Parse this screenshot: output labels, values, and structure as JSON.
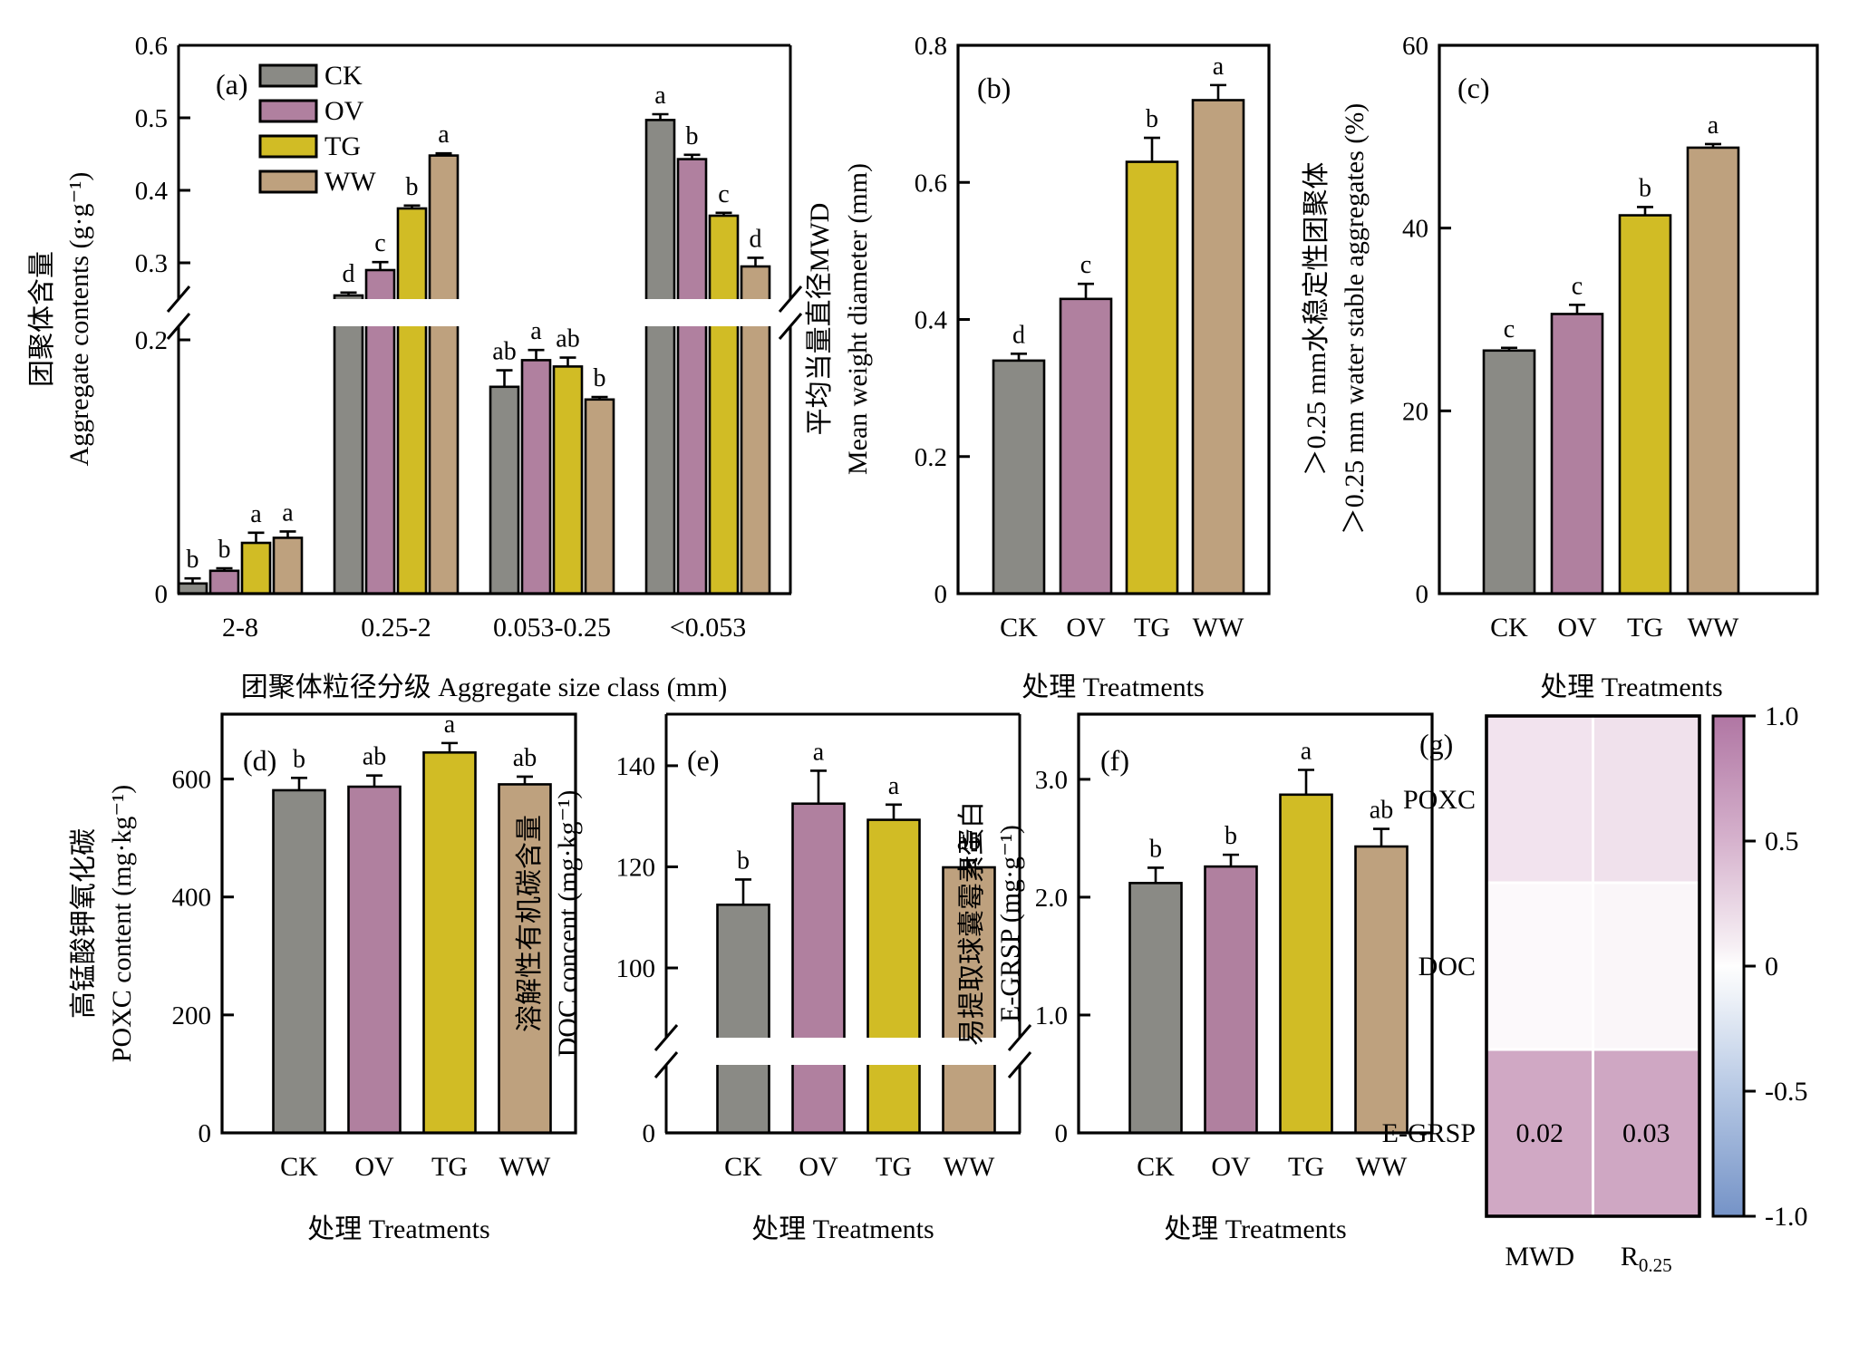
{
  "figure": {
    "background": "#ffffff",
    "treatments": [
      "CK",
      "OV",
      "TG",
      "WW"
    ],
    "treatment_colors": {
      "CK": "#8a8a85",
      "OV": "#b0809f",
      "TG": "#d1bc25",
      "WW": "#bea17e"
    },
    "bar_outline_color": "#000000",
    "legend_labels": [
      "CK",
      "OV",
      "TG",
      "WW"
    ]
  },
  "chart_data": [
    {
      "id": "a",
      "type": "bar",
      "panel_tag": "(a)",
      "xlabel": "团聚体粒径分级 Aggregate size class (mm)",
      "ylabel_zh": "团聚体含量",
      "ylabel_en": "Aggregate contents (g·g⁻¹)",
      "categories": [
        "2-8",
        "0.25-2",
        "0.053-0.25",
        "<0.053"
      ],
      "series": [
        {
          "name": "CK",
          "values": [
            0.008,
            0.255,
            0.163,
            0.497
          ],
          "errors": [
            0.004,
            0.004,
            0.013,
            0.008
          ],
          "letters": [
            "b",
            "d",
            "ab",
            "a"
          ]
        },
        {
          "name": "OV",
          "values": [
            0.018,
            0.29,
            0.184,
            0.443
          ],
          "errors": [
            0.002,
            0.011,
            0.008,
            0.006
          ],
          "letters": [
            "b",
            "c",
            "a",
            "b"
          ]
        },
        {
          "name": "TG",
          "values": [
            0.04,
            0.375,
            0.179,
            0.365
          ],
          "errors": [
            0.008,
            0.004,
            0.007,
            0.004
          ],
          "letters": [
            "a",
            "b",
            "ab",
            "c"
          ]
        },
        {
          "name": "WW",
          "values": [
            0.044,
            0.448,
            0.153,
            0.295
          ],
          "errors": [
            0.005,
            0.003,
            0.002,
            0.012
          ],
          "letters": [
            "a",
            "a",
            "b",
            "d"
          ]
        }
      ],
      "y_axis": {
        "broken": true,
        "segments": [
          {
            "ticks": [
              [
                "0.3",
                0.3
              ],
              [
                "0.4",
                0.4
              ],
              [
                "0.5",
                0.5
              ],
              [
                "0.6",
                0.6
              ]
            ]
          },
          {
            "ticks": [
              [
                "0",
                0
              ],
              [
                "0.2",
                0.2
              ]
            ]
          }
        ]
      },
      "legend": true
    },
    {
      "id": "b",
      "type": "bar",
      "panel_tag": "(b)",
      "xlabel": "处理 Treatments",
      "ylabel_zh": "平均当量直径MWD",
      "ylabel_en": "Mean weight diameter (mm)",
      "categories": [
        "CK",
        "OV",
        "TG",
        "WW"
      ],
      "values": [
        0.34,
        0.43,
        0.63,
        0.72
      ],
      "errors": [
        0.01,
        0.022,
        0.035,
        0.022
      ],
      "letters": [
        "d",
        "c",
        "b",
        "a"
      ],
      "y_axis": {
        "broken": false,
        "segments": [
          {
            "ticks": [
              [
                "0",
                0
              ],
              [
                "0.2",
                0.2
              ],
              [
                "0.4",
                0.4
              ],
              [
                "0.6",
                0.6
              ],
              [
                "0.8",
                0.8
              ]
            ]
          }
        ]
      }
    },
    {
      "id": "c",
      "type": "bar",
      "panel_tag": "(c)",
      "xlabel": "处理 Treatments",
      "ylabel_zh": "＞0.25 mm水稳定性团聚体",
      "ylabel_en": "＞0.25 mm water stable aggregates (%)",
      "categories": [
        "CK",
        "OV",
        "TG",
        "WW"
      ],
      "values": [
        26.6,
        30.6,
        41.4,
        48.8
      ],
      "errors": [
        0.3,
        1.0,
        0.9,
        0.4
      ],
      "letters": [
        "c",
        "c",
        "b",
        "a"
      ],
      "y_axis": {
        "broken": false,
        "segments": [
          {
            "ticks": [
              [
                "0",
                0
              ],
              [
                "20",
                20
              ],
              [
                "40",
                40
              ],
              [
                "60",
                60
              ]
            ]
          }
        ]
      }
    },
    {
      "id": "d",
      "type": "bar",
      "panel_tag": "(d)",
      "xlabel": "处理 Treatments",
      "ylabel_zh": "高锰酸钾氧化碳",
      "ylabel_en": "POXC content (mg·kg⁻¹)",
      "categories": [
        "CK",
        "OV",
        "TG",
        "WW"
      ],
      "values": [
        581,
        587,
        645,
        591
      ],
      "errors": [
        21,
        19,
        16,
        13
      ],
      "letters": [
        "b",
        "ab",
        "a",
        "ab"
      ],
      "y_axis": {
        "broken": false,
        "segments": [
          {
            "ticks": [
              [
                "0",
                0
              ],
              [
                "200",
                200
              ],
              [
                "400",
                400
              ],
              [
                "600",
                600
              ]
            ]
          }
        ]
      }
    },
    {
      "id": "e",
      "type": "bar",
      "panel_tag": "(e)",
      "xlabel": "处理 Treatments",
      "ylabel_zh": "溶解性有机碳含量",
      "ylabel_en": "DOC concent (mg·kg⁻¹)",
      "categories": [
        "CK",
        "OV",
        "TG",
        "WW"
      ],
      "values": [
        112.5,
        132.5,
        129.3,
        119.9
      ],
      "errors": [
        5.0,
        6.5,
        3.0,
        1.4
      ],
      "letters": [
        "b",
        "a",
        "a",
        "ab"
      ],
      "y_axis": {
        "broken": true,
        "segments": [
          {
            "ticks": [
              [
                "100",
                100
              ],
              [
                "120",
                120
              ],
              [
                "140",
                140
              ]
            ]
          },
          {
            "ticks": [
              [
                "0",
                0
              ]
            ]
          }
        ]
      }
    },
    {
      "id": "f",
      "type": "bar",
      "panel_tag": "(f)",
      "xlabel": "处理 Treatments",
      "ylabel_zh": "易提取球囊霉素蛋白",
      "ylabel_en": "E-GRSP (mg·g⁻¹)",
      "categories": [
        "CK",
        "OV",
        "TG",
        "WW"
      ],
      "values": [
        2.12,
        2.26,
        2.87,
        2.43
      ],
      "errors": [
        0.13,
        0.1,
        0.21,
        0.15
      ],
      "letters": [
        "b",
        "b",
        "a",
        "ab"
      ],
      "y_axis": {
        "broken": false,
        "segments": [
          {
            "ticks": [
              [
                "0",
                0
              ],
              [
                "1.0",
                1.0
              ],
              [
                "2.0",
                2.0
              ],
              [
                "3.0",
                3.0
              ]
            ]
          }
        ]
      }
    },
    {
      "id": "g",
      "type": "heatmap",
      "panel_tag": "(g)",
      "rows": [
        "POXC",
        "DOC",
        "E-GRSP"
      ],
      "cols": [
        {
          "label": "MWD",
          "sub": ""
        },
        {
          "label": "R",
          "sub": "0.25"
        }
      ],
      "cell_colors": [
        [
          "#f2e3ee",
          "#f0e1ec"
        ],
        [
          "#fcf9fb",
          "#faf6f9"
        ],
        [
          "#d0a8c4",
          "#cfa7c3"
        ]
      ],
      "annotations": [
        [
          "",
          ""
        ],
        [
          "",
          ""
        ],
        [
          "0.02",
          "0.03"
        ]
      ],
      "colorbar": {
        "ticks": [
          [
            "1.0",
            1.0
          ],
          [
            "0.5",
            0.5
          ],
          [
            "0",
            0
          ],
          [
            "-0.5",
            -0.5
          ],
          [
            "-1.0",
            -1.0
          ]
        ],
        "gradient": [
          "#b076a3",
          "#d6b2cd",
          "#fefefe",
          "#b6c8e4",
          "#7593c7"
        ],
        "range": [
          -1.0,
          1.0
        ]
      }
    }
  ]
}
